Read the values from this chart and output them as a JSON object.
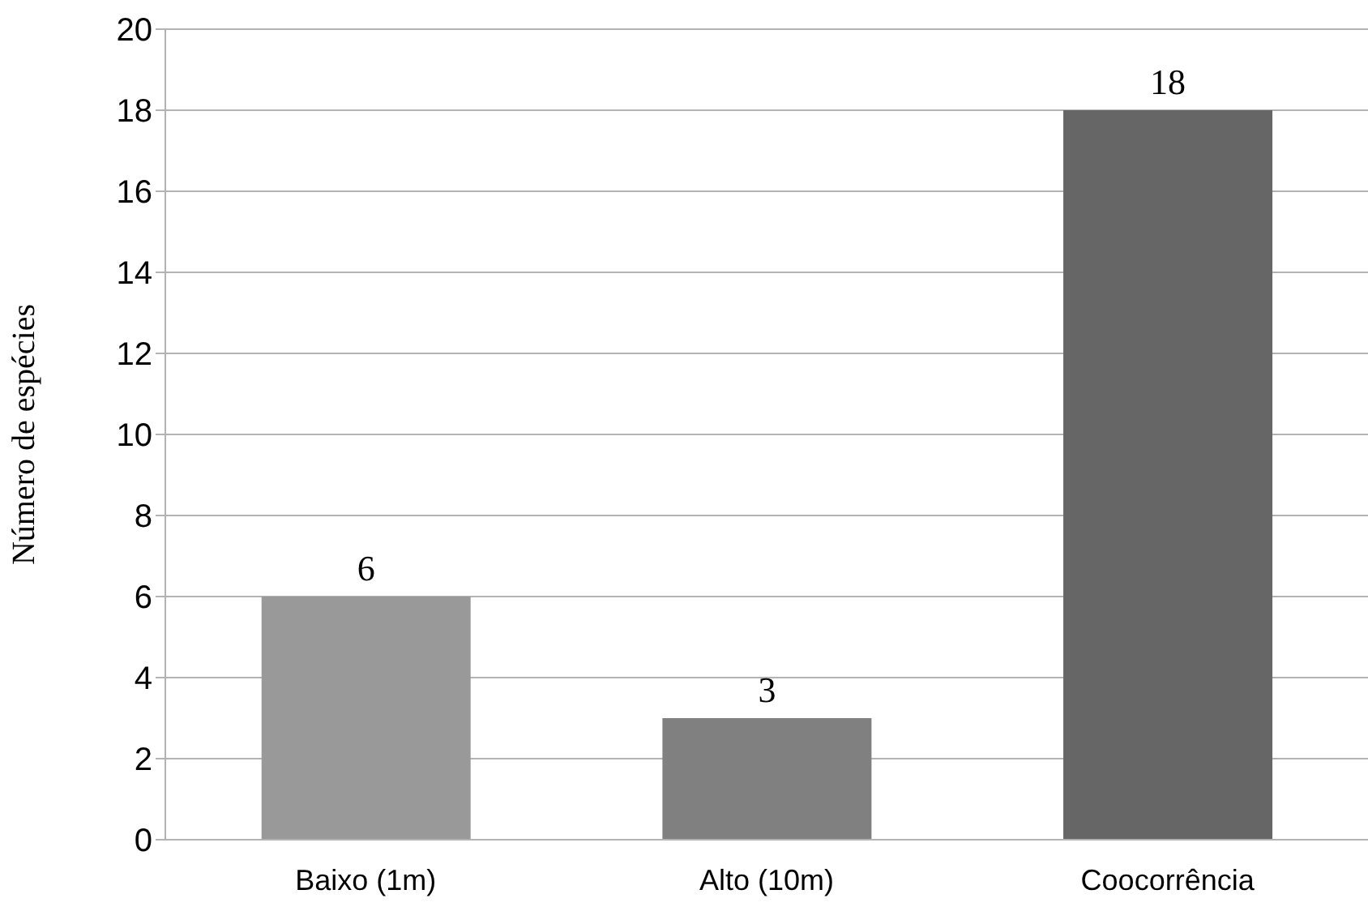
{
  "chart_data": {
    "type": "bar",
    "ylabel": "Número de espécies",
    "categories": [
      "Baixo (1m)",
      "Alto (10m)",
      "Coocorrência"
    ],
    "values": [
      6,
      3,
      18
    ],
    "colors": [
      "#999999",
      "#808080",
      "#666666"
    ],
    "ylim": [
      0,
      20
    ],
    "yticks": [
      0,
      2,
      4,
      6,
      8,
      10,
      12,
      14,
      16,
      18,
      20
    ],
    "grid": "y",
    "data_labels": true
  }
}
